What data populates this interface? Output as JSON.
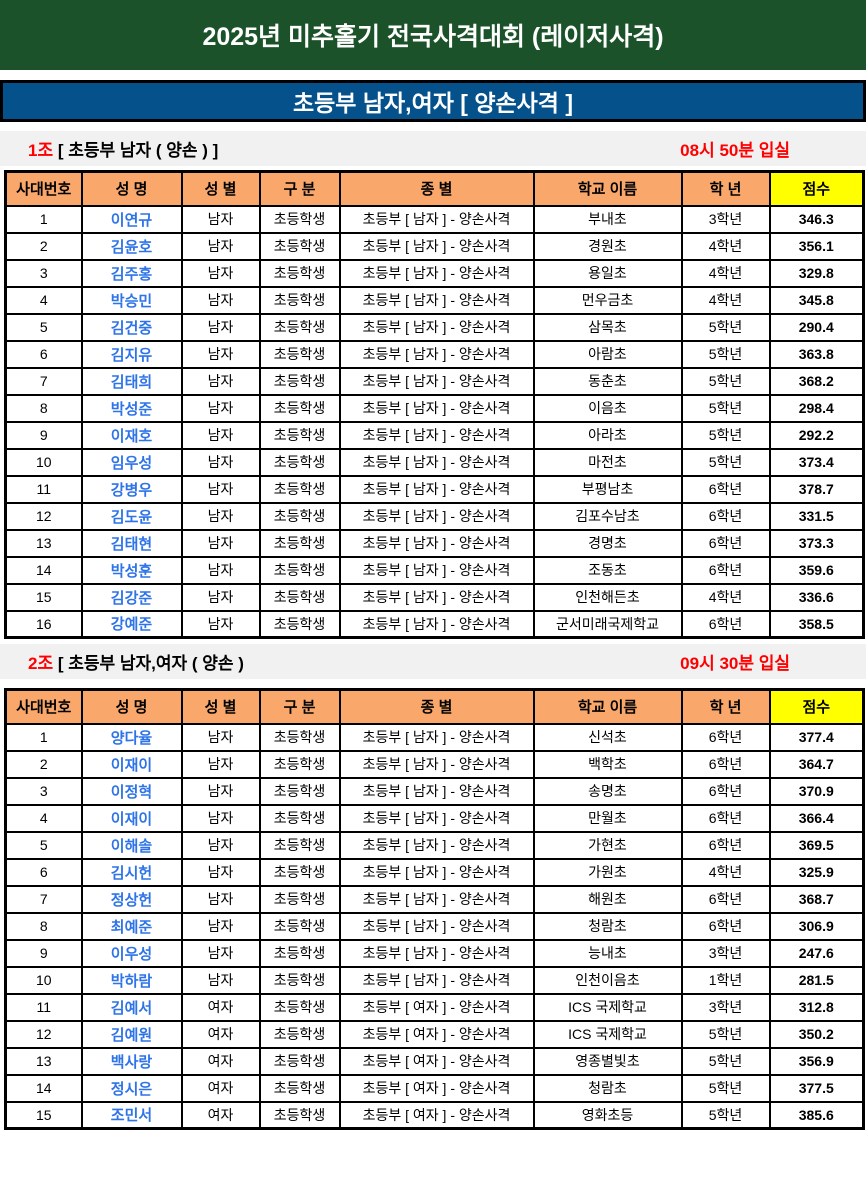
{
  "header": {
    "title": "2025년 미추홀기 전국사격대회 (레이저사격)"
  },
  "subheader": {
    "title": "초등부 남자,여자 [ 양손사격 ]"
  },
  "colors": {
    "header_green": "#1B5229",
    "subheader_blue": "#04518C",
    "column_header_orange": "#F9A76B",
    "score_header_yellow": "#FFFF00",
    "name_blue": "#2E74E8",
    "alert_red": "#FF0000",
    "section_band_gray": "#F1F1F1"
  },
  "columns": [
    "사대번호",
    "성 명",
    "성 별",
    "구 분",
    "종 별",
    "학교 이름",
    "학 년",
    "점수"
  ],
  "sections": [
    {
      "group_no": "1조",
      "group_title": " [ 초등부 남자 ( 양손 ) ]",
      "entry_time": "08시 50분 입실",
      "rows": [
        [
          "1",
          "이연규",
          "남자",
          "초등학생",
          "초등부 [ 남자 ] - 양손사격",
          "부내초",
          "3학년",
          "346.3"
        ],
        [
          "2",
          "김윤호",
          "남자",
          "초등학생",
          "초등부 [ 남자 ] - 양손사격",
          "경원초",
          "4학년",
          "356.1"
        ],
        [
          "3",
          "김주홍",
          "남자",
          "초등학생",
          "초등부 [ 남자 ] - 양손사격",
          "용일초",
          "4학년",
          "329.8"
        ],
        [
          "4",
          "박승민",
          "남자",
          "초등학생",
          "초등부 [ 남자 ] - 양손사격",
          "먼우금초",
          "4학년",
          "345.8"
        ],
        [
          "5",
          "김건중",
          "남자",
          "초등학생",
          "초등부 [ 남자 ] - 양손사격",
          "삼목초",
          "5학년",
          "290.4"
        ],
        [
          "6",
          "김지유",
          "남자",
          "초등학생",
          "초등부 [ 남자 ] - 양손사격",
          "아람초",
          "5학년",
          "363.8"
        ],
        [
          "7",
          "김태희",
          "남자",
          "초등학생",
          "초등부 [ 남자 ] - 양손사격",
          "동춘초",
          "5학년",
          "368.2"
        ],
        [
          "8",
          "박성준",
          "남자",
          "초등학생",
          "초등부 [ 남자 ] - 양손사격",
          "이음초",
          "5학년",
          "298.4"
        ],
        [
          "9",
          "이재호",
          "남자",
          "초등학생",
          "초등부 [ 남자 ] - 양손사격",
          "아라초",
          "5학년",
          "292.2"
        ],
        [
          "10",
          "임우성",
          "남자",
          "초등학생",
          "초등부 [ 남자 ] - 양손사격",
          "마전초",
          "5학년",
          "373.4"
        ],
        [
          "11",
          "강병우",
          "남자",
          "초등학생",
          "초등부 [ 남자 ] - 양손사격",
          "부평남초",
          "6학년",
          "378.7"
        ],
        [
          "12",
          "김도윤",
          "남자",
          "초등학생",
          "초등부 [ 남자 ] - 양손사격",
          "김포수남초",
          "6학년",
          "331.5"
        ],
        [
          "13",
          "김태현",
          "남자",
          "초등학생",
          "초등부 [ 남자 ] - 양손사격",
          "경명초",
          "6학년",
          "373.3"
        ],
        [
          "14",
          "박성훈",
          "남자",
          "초등학생",
          "초등부 [ 남자 ] - 양손사격",
          "조동초",
          "6학년",
          "359.6"
        ],
        [
          "15",
          "김강준",
          "남자",
          "초등학생",
          "초등부 [ 남자 ] - 양손사격",
          "인천해든초",
          "4학년",
          "336.6"
        ],
        [
          "16",
          "강예준",
          "남자",
          "초등학생",
          "초등부 [ 남자 ] - 양손사격",
          "군서미래국제학교",
          "6학년",
          "358.5"
        ]
      ]
    },
    {
      "group_no": "2조",
      "group_title": " [ 초등부 남자,여자 ( 양손 )",
      "entry_time": "09시 30분 입실",
      "rows": [
        [
          "1",
          "양다율",
          "남자",
          "초등학생",
          "초등부 [ 남자 ] - 양손사격",
          "신석초",
          "6학년",
          "377.4"
        ],
        [
          "2",
          "이재이",
          "남자",
          "초등학생",
          "초등부 [ 남자 ] - 양손사격",
          "백학초",
          "6학년",
          "364.7"
        ],
        [
          "3",
          "이정혁",
          "남자",
          "초등학생",
          "초등부 [ 남자 ] - 양손사격",
          "송명초",
          "6학년",
          "370.9"
        ],
        [
          "4",
          "이재이",
          "남자",
          "초등학생",
          "초등부 [ 남자 ] - 양손사격",
          "만월초",
          "6학년",
          "366.4"
        ],
        [
          "5",
          "이해솔",
          "남자",
          "초등학생",
          "초등부 [ 남자 ] - 양손사격",
          "가현초",
          "6학년",
          "369.5"
        ],
        [
          "6",
          "김시헌",
          "남자",
          "초등학생",
          "초등부 [ 남자 ] - 양손사격",
          "가원초",
          "4학년",
          "325.9"
        ],
        [
          "7",
          "정상헌",
          "남자",
          "초등학생",
          "초등부 [ 남자 ] - 양손사격",
          "해원초",
          "6학년",
          "368.7"
        ],
        [
          "8",
          "최예준",
          "남자",
          "초등학생",
          "초등부 [ 남자 ] - 양손사격",
          "청람초",
          "6학년",
          "306.9"
        ],
        [
          "9",
          "이우성",
          "남자",
          "초등학생",
          "초등부 [ 남자 ] - 양손사격",
          "능내초",
          "3학년",
          "247.6"
        ],
        [
          "10",
          "박하람",
          "남자",
          "초등학생",
          "초등부 [ 남자 ] - 양손사격",
          "인천이음초",
          "1학년",
          "281.5"
        ],
        [
          "11",
          "김예서",
          "여자",
          "초등학생",
          "초등부 [ 여자 ] - 양손사격",
          "ICS 국제학교",
          "3학년",
          "312.8"
        ],
        [
          "12",
          "김예원",
          "여자",
          "초등학생",
          "초등부 [ 여자 ] - 양손사격",
          "ICS 국제학교",
          "5학년",
          "350.2"
        ],
        [
          "13",
          "백사랑",
          "여자",
          "초등학생",
          "초등부 [ 여자 ] - 양손사격",
          "영종별빛초",
          "5학년",
          "356.9"
        ],
        [
          "14",
          "정시은",
          "여자",
          "초등학생",
          "초등부 [ 여자 ] - 양손사격",
          "청람초",
          "5학년",
          "377.5"
        ],
        [
          "15",
          "조민서",
          "여자",
          "초등학생",
          "초등부 [ 여자 ] - 양손사격",
          "영화초등",
          "5학년",
          "385.6"
        ]
      ]
    }
  ]
}
